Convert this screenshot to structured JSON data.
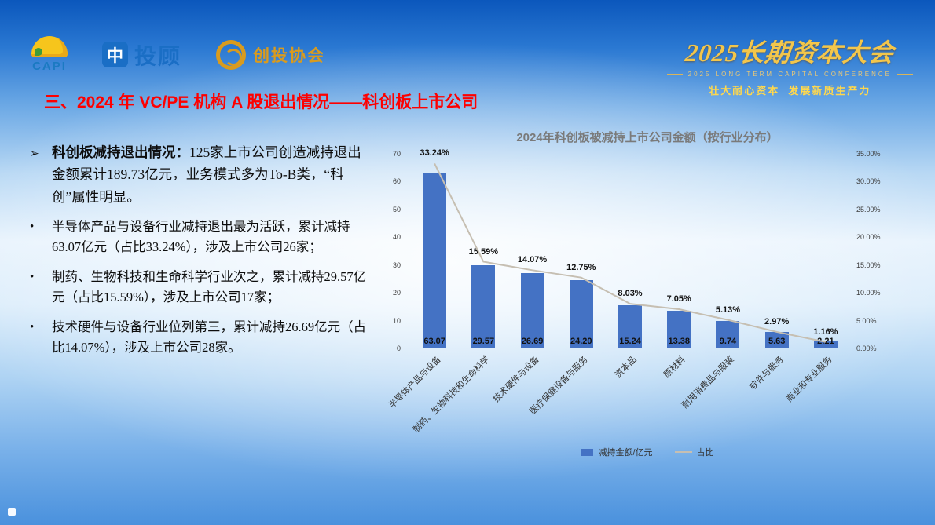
{
  "header": {
    "logo_capi": {
      "text": "CAPI"
    },
    "logo_tougu": {
      "icon_glyph": "中",
      "text": "投顾"
    },
    "logo_association": {
      "text": "创投协会"
    },
    "conference": {
      "title": "2025长期资本大会",
      "subtitle": "2025 LONG TERM CAPITAL CONFERENCE",
      "slogan": "壮大耐心资本  发展新质生产力"
    }
  },
  "slide_title": "三、2024 年 VC/PE 机构 A 股退出情况——科创板上市公司",
  "bullets": {
    "lead_marker": "➢",
    "item_marker": "•",
    "lead_bold": "科创板减持退出情况：",
    "lead_text": "125家上市公司创造减持退出金额累计189.73亿元，业务模式多为To-B类，“科创”属性明显。",
    "items": [
      "半导体产品与设备行业减持退出最为活跃，累计减持63.07亿元（占比33.24%），涉及上市公司26家；",
      "制药、生物科技和生命科学行业次之，累计减持29.57亿元（占比15.59%），涉及上市公司17家；",
      "技术硬件与设备行业位列第三，累计减持26.69亿元（占比14.07%），涉及上市公司28家。"
    ]
  },
  "colors": {
    "slide_title": "#FE0000",
    "bar": "#4472C4",
    "line": "#C6BFB2",
    "conference_gold": "#F3C64B"
  },
  "chart_data": {
    "type": "bar",
    "title": "2024年科创板被减持上市公司金额（按行业分布）",
    "categories": [
      "半导体产品与设备",
      "制药、生物科技和生命科学",
      "技术硬件与设备",
      "医疗保健设备与服务",
      "资本品",
      "原材料",
      "耐用消费品与服装",
      "软件与服务",
      "商业和专业服务"
    ],
    "series": [
      {
        "name": "减持金额/亿元",
        "type": "bar",
        "color": "#4472C4",
        "values": [
          63.07,
          29.57,
          26.69,
          24.2,
          15.24,
          13.38,
          9.74,
          5.63,
          2.21
        ]
      },
      {
        "name": "占比",
        "type": "line",
        "color": "#C6BFB2",
        "unit": "%",
        "values": [
          33.24,
          15.59,
          14.07,
          12.75,
          8.03,
          7.05,
          5.13,
          2.97,
          1.16
        ]
      }
    ],
    "left_axis": {
      "min": 0,
      "max": 70,
      "step": 10
    },
    "right_axis": {
      "min": 0,
      "max": 35,
      "step": 5,
      "format": "0.00%"
    },
    "legend_position": "bottom",
    "grid": false
  }
}
